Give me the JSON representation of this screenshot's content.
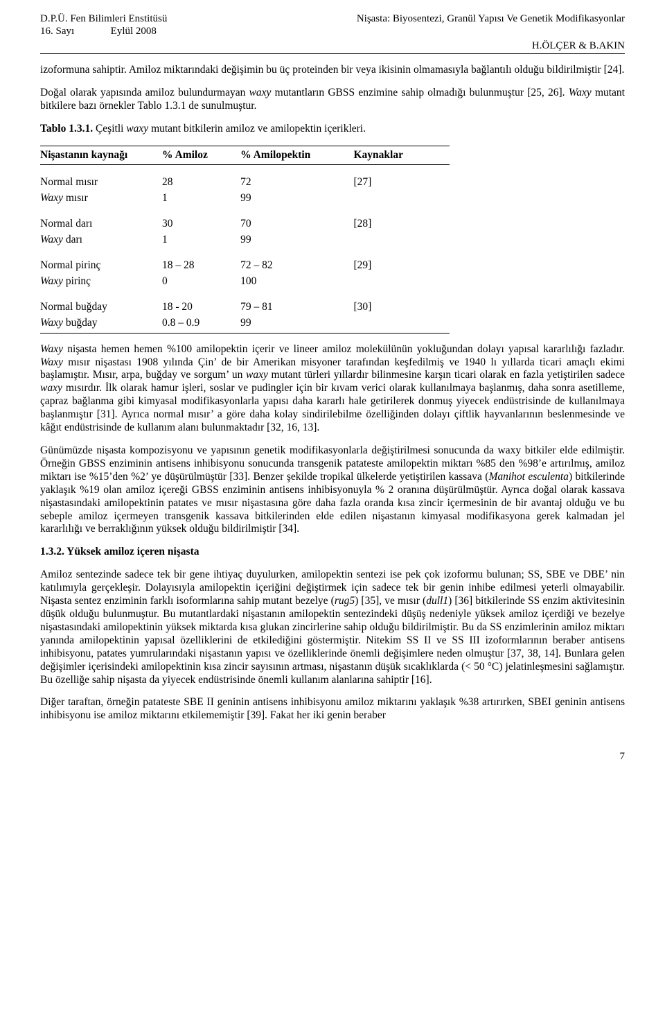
{
  "header": {
    "institute": "D.P.Ü. Fen Bilimleri Enstitüsü",
    "issue": "16. Sayı",
    "date": "Eylül 2008",
    "title": "Nişasta: Biyosentezi, Granül Yapısı Ve Genetik Modifikasyonlar",
    "authors": "H.ÖLÇER & B.AKIN"
  },
  "para1": "izoformuna sahiptir. Amiloz miktarındaki değişimin bu üç proteinden bir veya ikisinin olmamasıyla bağlantılı olduğu bildirilmiştir [24].",
  "para2a": "Doğal olarak yapısında amiloz bulundurmayan ",
  "para2b": "waxy",
  "para2c": " mutantların GBSS enzimine sahip olmadığı bulunmuştur [25, 26]. ",
  "para2d": "Waxy",
  "para2e": " mutant bitkilere bazı örnekler  Tablo 1.3.1 de sunulmuştur.",
  "table": {
    "caption_bold": "Tablo 1.3.1.",
    "caption_rest_a": " Çeşitli  ",
    "caption_rest_b": "waxy",
    "caption_rest_c": " mutant bitkilerin  amiloz ve amilopektin içerikleri.",
    "columns": {
      "source": "Nişastanın kaynağı",
      "amylose": "% Amiloz",
      "amylopectin": "% Amilopektin",
      "refs": "Kaynaklar"
    },
    "groups": [
      {
        "rows": [
          {
            "src_a": "Normal mısır",
            "src_b": "",
            "am": "28",
            "ap": "72",
            "ref": "[27]"
          },
          {
            "src_a": "Waxy",
            "src_b": " mısır",
            "am": "1",
            "ap": "99",
            "ref": ""
          }
        ]
      },
      {
        "rows": [
          {
            "src_a": "Normal darı",
            "src_b": "",
            "am": "30",
            "ap": "70",
            "ref": "[28]"
          },
          {
            "src_a": "Waxy",
            "src_b": " darı",
            "am": "1",
            "ap": "99",
            "ref": ""
          }
        ]
      },
      {
        "rows": [
          {
            "src_a": "Normal pirinç",
            "src_b": "",
            "am": "18 – 28",
            "ap": "72 – 82",
            "ref": "[29]"
          },
          {
            "src_a": "Waxy",
            "src_b": " pirinç",
            "am": "0",
            "ap": "100",
            "ref": ""
          }
        ]
      },
      {
        "rows": [
          {
            "src_a": "Normal buğday",
            "src_b": "",
            "am": "18 - 20",
            "ap": "79 – 81",
            "ref": "[30]"
          },
          {
            "src_a": "Waxy",
            "src_b": " buğday",
            "am": "0.8 – 0.9",
            "ap": "99",
            "ref": ""
          }
        ]
      }
    ]
  },
  "para3a": "Waxy",
  "para3b": " nişasta hemen hemen %100 amilopektin içerir ve lineer amiloz molekülünün yokluğundan dolayı yapısal kararlılığı fazladır. ",
  "para3c": "Waxy",
  "para3d": " mısır nişastası 1908 yılında Çin’ de bir Amerikan misyoner tarafından keşfedilmiş ve 1940 lı yıllarda ticari amaçlı ekimi başlamıştır. Mısır, arpa, buğday ve sorgum’ un ",
  "para3e": "waxy",
  "para3f": " mutant türleri yıllardır bilinmesine karşın ticari olarak en fazla yetiştirilen sadece ",
  "para3g": "waxy",
  "para3h": " mısırdır. İlk olarak hamur işleri, soslar ve pudingler için bir kıvam verici olarak kullanılmaya başlanmış, daha sonra asetilleme, çapraz bağlanma gibi kimyasal modifikasyonlarla yapısı daha kararlı hale getirilerek donmuş yiyecek endüstrisinde de kullanılmaya başlanmıştır [31]. Ayrıca normal mısır’ a göre daha kolay sindirilebilme özelliğinden dolayı çiftlik hayvanlarının beslenmesinde ve kâğıt endüstrisinde de kullanım alanı bulunmaktadır [32, 16, 13].",
  "para4a": "Günümüzde nişasta kompozisyonu ve yapısının genetik modifikasyonlarla değiştirilmesi sonucunda da waxy bitkiler elde edilmiştir. Örneğin GBSS enziminin antisens inhibisyonu sonucunda transgenik patateste amilopektin miktarı %85  den %98’e artırılmış, amiloz miktarı ise %15’den %2’ ye düşürülmüştür [33]. Benzer şekilde tropikal ülkelerde yetiştirilen kassava (",
  "para4b": "Manihot esculenta",
  "para4c": ") bitkilerinde yaklaşık %19 olan amiloz içereği GBSS enziminin antisens inhibisyonuyla % 2 oranına düşürülmüştür. Ayrıca doğal olarak kassava nişastasındaki amilopektinin patates ve mısır nişastasına göre daha fazla oranda kısa zincir içermesinin de bir avantaj olduğu ve bu sebeple amiloz içermeyen transgenik kassava bitkilerinden elde edilen nişastanın kimyasal modifikasyona gerek kalmadan jel kararlılığı ve berraklığının yüksek olduğu bildirilmiştir [34].",
  "section_heading": "1.3.2. Yüksek amiloz içeren nişasta",
  "para5a": "Amiloz sentezinde sadece tek bir gene ihtiyaç duyulurken, amilopektin sentezi ise pek çok izoformu bulunan; SS, SBE ve DBE’ nin katılımıyla gerçekleşir. Dolayısıyla amilopektin içeriğini değiştirmek için sadece tek bir genin inhibe edilmesi yeterli olmayabilir. Nişasta sentez enziminin farklı isoformlarına sahip mutant bezelye (",
  "para5b": "rug5",
  "para5c": ") [35], ve mısır (",
  "para5d": "dull1",
  "para5e": ") [36] bitkilerinde SS enzim aktivitesinin düşük olduğu bulunmuştur. Bu mutantlardaki nişastanın amilopektin sentezindeki düşüş nedeniyle yüksek amiloz içerdiği ve bezelye nişastasındaki amilopektinin yüksek miktarda kısa glukan zincirlerine sahip olduğu bildirilmiştir. Bu da SS enzimlerinin amiloz miktarı yanında amilopektinin yapısal özelliklerini de etkilediğini göstermiştir. Nitekim SS II ve SS III izoformlarının beraber antisens inhibisyonu, patates yumrularındaki nişastanın yapısı ve özelliklerinde önemli değişimlere neden olmuştur [37, 38, 14]. Bunlara gelen değişimler içerisindeki amilopektinin kısa zincir sayısının artması, nişastanın düşük sıcaklıklarda (< 50 °C) jelatinleşmesini sağlamıştır. Bu özelliğe sahip nişasta da yiyecek endüstrisinde önemli kullanım alanlarına sahiptir [16].",
  "para6": "Diğer taraftan, örneğin patateste SBE II geninin antisens inhibisyonu amiloz miktarını yaklaşık %38 artırırken, SBEI geninin antisens inhibisyonu ise amiloz miktarını etkilememiştir [39]. Fakat her iki genin beraber",
  "page_number": "7"
}
